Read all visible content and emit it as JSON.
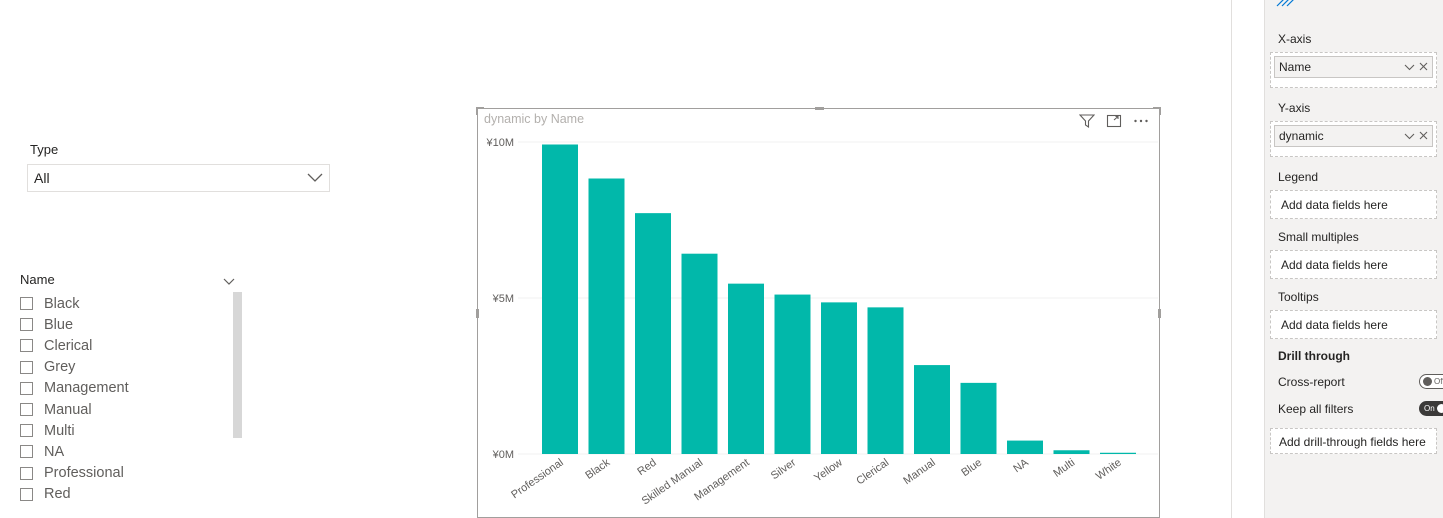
{
  "type_slicer": {
    "label": "Type",
    "selected": "All"
  },
  "name_slicer": {
    "label": "Name",
    "items": [
      "Black",
      "Blue",
      "Clerical",
      "Grey",
      "Management",
      "Manual",
      "Multi",
      "NA",
      "Professional",
      "Red"
    ]
  },
  "chart": {
    "title": "dynamic by Name"
  },
  "chart_data": {
    "type": "bar",
    "title": "dynamic by Name",
    "categories": [
      "Professional",
      "Black",
      "Red",
      "Skilled Manual",
      "Management",
      "Silver",
      "Yellow",
      "Clerical",
      "Manual",
      "Blue",
      "NA",
      "Multi",
      "White"
    ],
    "values": [
      9.92,
      8.83,
      7.72,
      6.42,
      5.46,
      5.11,
      4.86,
      4.7,
      2.85,
      2.28,
      0.43,
      0.12,
      0.04
    ],
    "value_unit": "¥M",
    "ylim": [
      0,
      10
    ],
    "yticks": [
      "¥0M",
      "¥5M",
      "¥10M"
    ],
    "xlabel": "",
    "ylabel": "",
    "grid": true,
    "color": "#01b8aa"
  },
  "pane": {
    "x_axis": {
      "label": "X-axis",
      "field": "Name"
    },
    "y_axis": {
      "label": "Y-axis",
      "field": "dynamic"
    },
    "legend": {
      "label": "Legend",
      "placeholder": "Add data fields here"
    },
    "small_multiples": {
      "label": "Small multiples",
      "placeholder": "Add data fields here"
    },
    "tooltips": {
      "label": "Tooltips",
      "placeholder": "Add data fields here"
    },
    "drill_through": {
      "title": "Drill through",
      "cross_report": {
        "label": "Cross-report",
        "state": "Off"
      },
      "keep_filters": {
        "label": "Keep all filters",
        "state": "On"
      },
      "placeholder": "Add drill-through fields here"
    }
  }
}
